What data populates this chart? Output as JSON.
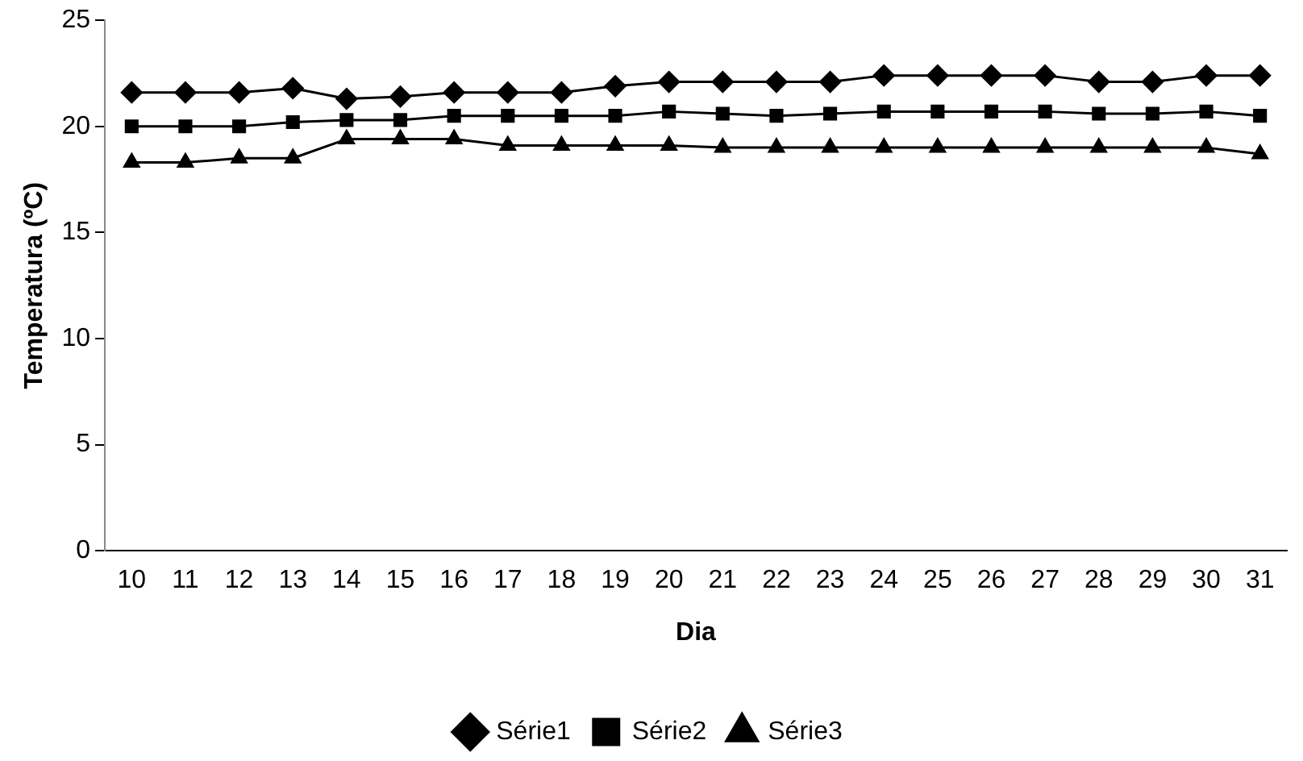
{
  "chart_data": {
    "type": "line",
    "xlabel": "Dia",
    "ylabel": "Temperatura (ºC)",
    "categories": [
      "10",
      "11",
      "12",
      "13",
      "14",
      "15",
      "16",
      "17",
      "18",
      "19",
      "20",
      "21",
      "22",
      "23",
      "24",
      "25",
      "26",
      "27",
      "28",
      "29",
      "30",
      "31"
    ],
    "ylim": [
      0,
      25
    ],
    "yticks": [
      0,
      5,
      10,
      15,
      20,
      25
    ],
    "grid": false,
    "legend": "bottom",
    "series": [
      {
        "name": "Série1",
        "color": "#000000",
        "marker": "diamond",
        "values": [
          21.6,
          21.6,
          21.6,
          21.8,
          21.3,
          21.4,
          21.6,
          21.6,
          21.6,
          21.9,
          22.1,
          22.1,
          22.1,
          22.1,
          22.4,
          22.4,
          22.4,
          22.4,
          22.1,
          22.1,
          22.4,
          22.4
        ]
      },
      {
        "name": "Série2",
        "color": "#000000",
        "marker": "square",
        "values": [
          20.0,
          20.0,
          20.0,
          20.2,
          20.3,
          20.3,
          20.5,
          20.5,
          20.5,
          20.5,
          20.7,
          20.6,
          20.5,
          20.6,
          20.7,
          20.7,
          20.7,
          20.7,
          20.6,
          20.6,
          20.7,
          20.5
        ]
      },
      {
        "name": "Série3",
        "color": "#000000",
        "marker": "triangle",
        "values": [
          18.3,
          18.3,
          18.5,
          18.5,
          19.4,
          19.4,
          19.4,
          19.1,
          19.1,
          19.1,
          19.1,
          19.0,
          19.0,
          19.0,
          19.0,
          19.0,
          19.0,
          19.0,
          19.0,
          19.0,
          19.0,
          18.7
        ]
      }
    ]
  }
}
